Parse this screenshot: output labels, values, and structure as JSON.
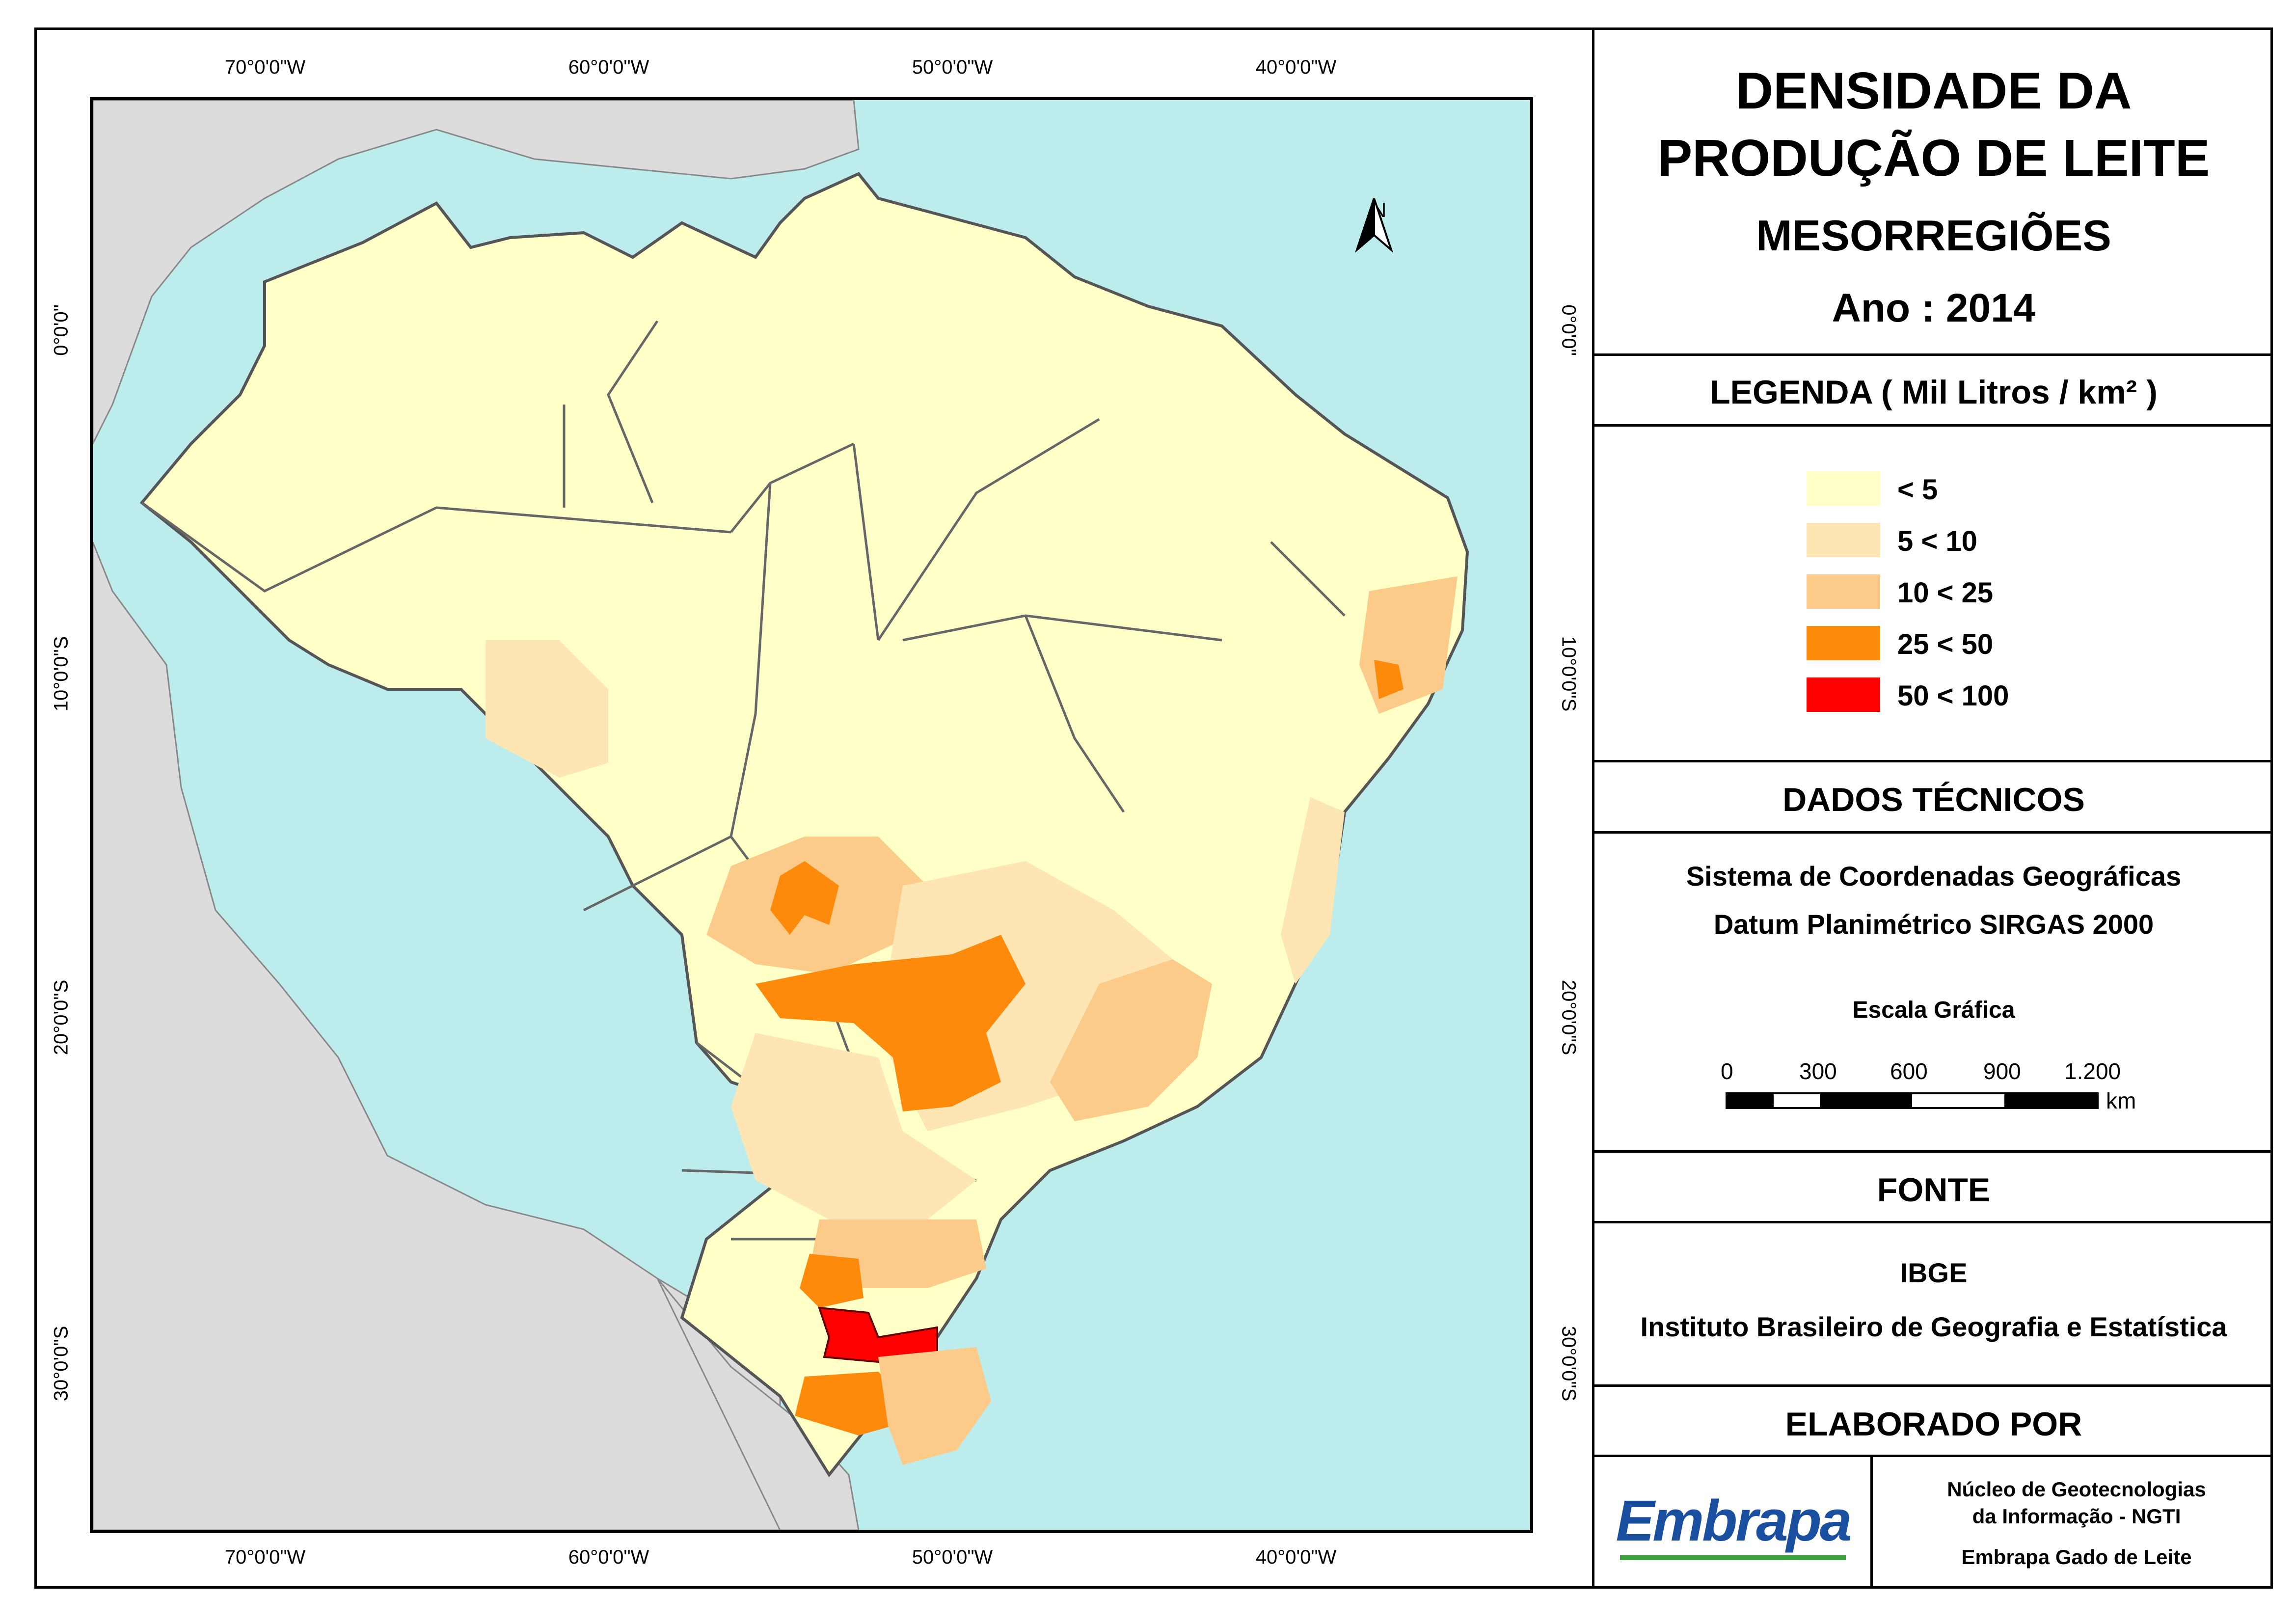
{
  "title": {
    "line1": "DENSIDADE DA",
    "line2": "PRODUÇÃO DE LEITE",
    "line3": "MESORREGIÕES",
    "year": "Ano : 2014"
  },
  "legend": {
    "header": "LEGENDA ( Mil Litros / km² )",
    "classes": [
      {
        "label": "< 5",
        "color": "#ffffc8"
      },
      {
        "label": "5 < 10",
        "color": "#fde6b4"
      },
      {
        "label": "10 < 25",
        "color": "#fccb8a"
      },
      {
        "label": "25 < 50",
        "color": "#fd8a0a"
      },
      {
        "label": "50 < 100",
        "color": "#ff0000"
      }
    ]
  },
  "technical": {
    "header": "DADOS TÉCNICOS",
    "line1": "Sistema de Coordenadas Geográficas",
    "line2": "Datum Planimétrico SIRGAS 2000",
    "scale_title": "Escala Gráfica",
    "scale_labels": [
      "0",
      "300",
      "600",
      "900",
      "1.200"
    ],
    "scale_unit": "km"
  },
  "source": {
    "header": "FONTE",
    "line1": "IBGE",
    "line2": "Instituto Brasileiro de Geografia e Estatística"
  },
  "author": {
    "header": "ELABORADO POR",
    "logo": "Embrapa",
    "line1": "Núcleo de Geotecnologias",
    "line2": "da Informação - NGTI",
    "line3": "Embrapa Gado de Leite"
  },
  "map": {
    "north_label": "N",
    "lon_ticks": [
      "70°0'0\"W",
      "60°0'0\"W",
      "50°0'0\"W",
      "40°0'0\"W"
    ],
    "lat_ticks": [
      "0°0'0\"",
      "10°0'0\"S",
      "20°0'0\"S",
      "30°0'0\"S"
    ],
    "colors": {
      "ocean": "#bdeced",
      "neighbors": "#dcdcdc",
      "border": "#555555"
    }
  }
}
